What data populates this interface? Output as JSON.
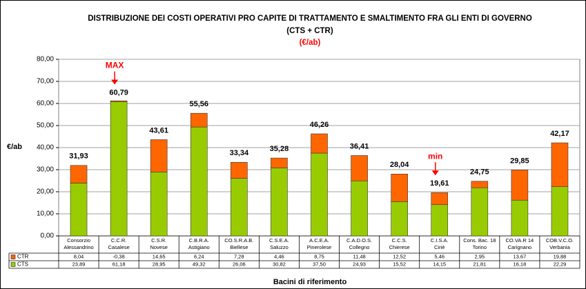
{
  "chart_data": {
    "type": "stacked_bar",
    "title": "DISTRIBUZIONE DEI COSTI OPERATIVI PRO CAPITE DI TRATTAMENTO E SMALTIMENTO FRA GLI ENTI DI GOVERNO",
    "subtitle": "(CTS + CTR)",
    "unit_label": "(€/ab)",
    "y_label": "€/ab",
    "x_label": "Bacini di riferimento",
    "categories": [
      [
        "Consorzio",
        "Alessandrino"
      ],
      [
        "C.C.R.",
        "Casalese"
      ],
      [
        "C.S.R.",
        "Novese"
      ],
      [
        "C.B.R.A.",
        "Astigiano"
      ],
      [
        "CO.S.R.A.B.",
        "Biellese"
      ],
      [
        "C.S.E.A.",
        "Saluzzo"
      ],
      [
        "A.C.E.A.",
        "Pinerolese"
      ],
      [
        "C.A.D.O.S.",
        "Collegno"
      ],
      [
        "C.C.S.",
        "Chierese"
      ],
      [
        "C.I.S.A.",
        "Ciriè"
      ],
      [
        "Cons. Bac. 18",
        "Torino"
      ],
      [
        "CO.VA.R 14",
        "Carignano"
      ],
      [
        "COB.V.C.O.",
        "Verbania"
      ]
    ],
    "series": [
      {
        "name": "CTR",
        "color": "#ff6600",
        "values": [
          8.04,
          -0.38,
          14.65,
          6.24,
          7.28,
          4.46,
          8.75,
          11.48,
          12.52,
          5.46,
          2.95,
          13.67,
          19.88
        ],
        "value_labels": [
          "8,04",
          "-0,38",
          "14,65",
          "6,24",
          "7,28",
          "4,46",
          "8,75",
          "11,48",
          "12,52",
          "5,46",
          "2,95",
          "13,67",
          "19,88"
        ]
      },
      {
        "name": "CTS",
        "color": "#99cc00",
        "values": [
          23.89,
          61.18,
          28.95,
          49.32,
          26.06,
          30.82,
          37.5,
          24.93,
          15.52,
          14.15,
          21.81,
          16.18,
          22.29
        ],
        "value_labels": [
          "23,89",
          "61,18",
          "28,95",
          "49,32",
          "26,06",
          "30,82",
          "37,50",
          "24,93",
          "15,52",
          "14,15",
          "21,81",
          "16,18",
          "22,29"
        ]
      }
    ],
    "totals": {
      "values": [
        31.93,
        60.79,
        43.61,
        55.56,
        33.34,
        35.28,
        46.26,
        36.41,
        28.04,
        19.61,
        24.75,
        29.85,
        42.17
      ],
      "value_labels": [
        "31,93",
        "60,79",
        "43,61",
        "55,56",
        "33,34",
        "35,28",
        "46,26",
        "36,41",
        "28,04",
        "19,61",
        "24,75",
        "29,85",
        "42,17"
      ]
    },
    "annotations": {
      "max": "MAX",
      "min": "min"
    },
    "ylim": [
      0,
      80
    ],
    "yticks": [
      {
        "value": 0,
        "label": "0,00"
      },
      {
        "value": 10,
        "label": "10,00"
      },
      {
        "value": 20,
        "label": "20,00"
      },
      {
        "value": 30,
        "label": "30,00"
      },
      {
        "value": 40,
        "label": "40,00"
      },
      {
        "value": 50,
        "label": "50,00"
      },
      {
        "value": 60,
        "label": "60,00"
      },
      {
        "value": 70,
        "label": "70,00"
      },
      {
        "value": 80,
        "label": "80,00"
      }
    ],
    "grid": true
  }
}
